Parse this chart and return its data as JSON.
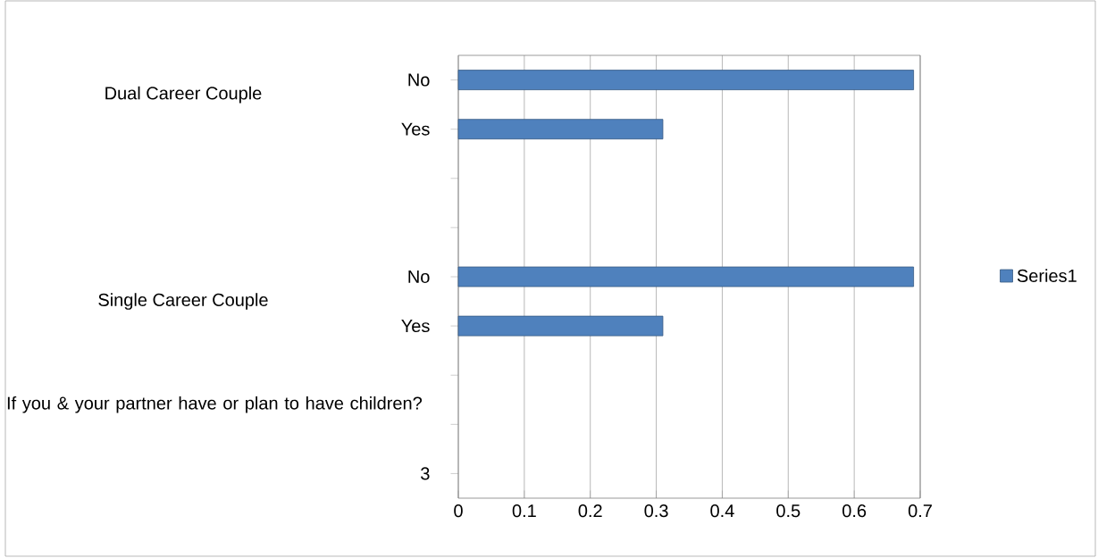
{
  "chart_data": {
    "type": "bar",
    "orientation": "horizontal",
    "categories": [
      "No",
      "Yes",
      null,
      null,
      "No",
      "Yes",
      null,
      null,
      "3"
    ],
    "series": [
      {
        "name": "Series1",
        "color": "#4f81bd",
        "values": [
          0.69,
          0.31,
          null,
          null,
          0.69,
          0.31,
          null,
          null,
          null
        ]
      }
    ],
    "xlim": [
      0,
      0.7
    ],
    "xticks": [
      0,
      0.1,
      0.2,
      0.3,
      0.4,
      0.5,
      0.6,
      0.7
    ],
    "grid": "x",
    "legend": "right",
    "annotations": [
      "Dual Career Couple",
      "Single  Career Couple",
      "If you & your partner have or plan to have children?"
    ]
  }
}
